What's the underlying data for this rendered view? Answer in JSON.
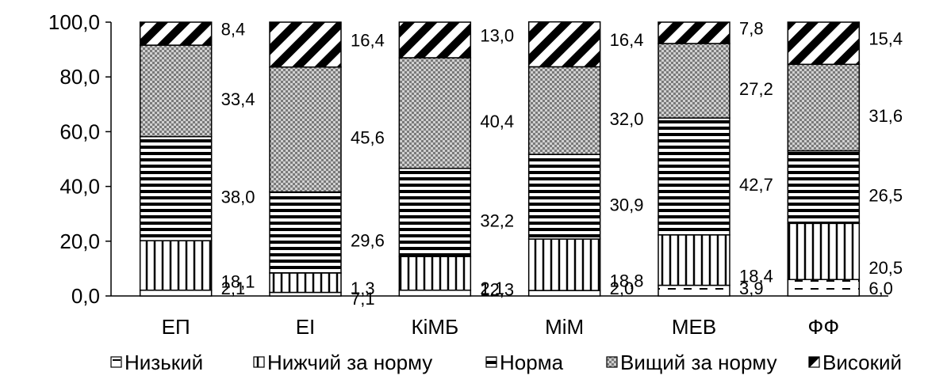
{
  "chart_data": {
    "type": "bar",
    "stacked": true,
    "categories": [
      "ЕП",
      "ЕІ",
      "КіМБ",
      "МіМ",
      "МЕВ",
      "ФФ"
    ],
    "series": [
      {
        "name": "Низький",
        "values": [
          2.1,
          1.3,
          2.1,
          2.0,
          3.9,
          6.0
        ]
      },
      {
        "name": "Нижчий за норму",
        "values": [
          18.1,
          7.1,
          12.3,
          18.8,
          18.4,
          20.5
        ]
      },
      {
        "name": "Норма",
        "values": [
          38.0,
          29.6,
          32.2,
          30.9,
          42.7,
          26.5
        ]
      },
      {
        "name": "Вищий за норму",
        "values": [
          33.4,
          45.6,
          40.4,
          32.0,
          27.2,
          31.6
        ]
      },
      {
        "name": "Високий",
        "values": [
          8.4,
          16.4,
          13.0,
          16.4,
          7.8,
          15.4
        ]
      }
    ],
    "data_labels": [
      [
        "2,1",
        "1,3",
        "2,1",
        "2,0",
        "3,9",
        "6,0"
      ],
      [
        "18,1",
        "7,1",
        "12,3",
        "18,8",
        "18,4",
        "20,5"
      ],
      [
        "38,0",
        "29,6",
        "32,2",
        "30,9",
        "42,7",
        "26,5"
      ],
      [
        "33,4",
        "45,6",
        "40,4",
        "32,0",
        "27,2",
        "31,6"
      ],
      [
        "8,4",
        "16,4",
        "13,0",
        "16,4",
        "7,8",
        "15,4"
      ]
    ],
    "y_ticks": [
      0,
      20,
      40,
      60,
      80,
      100
    ],
    "y_tick_labels": [
      "0,0",
      "20,0",
      "40,0",
      "60,0",
      "80,0",
      "100,0"
    ],
    "ylim": [
      0,
      100
    ],
    "legend_position": "bottom",
    "grid": false
  }
}
